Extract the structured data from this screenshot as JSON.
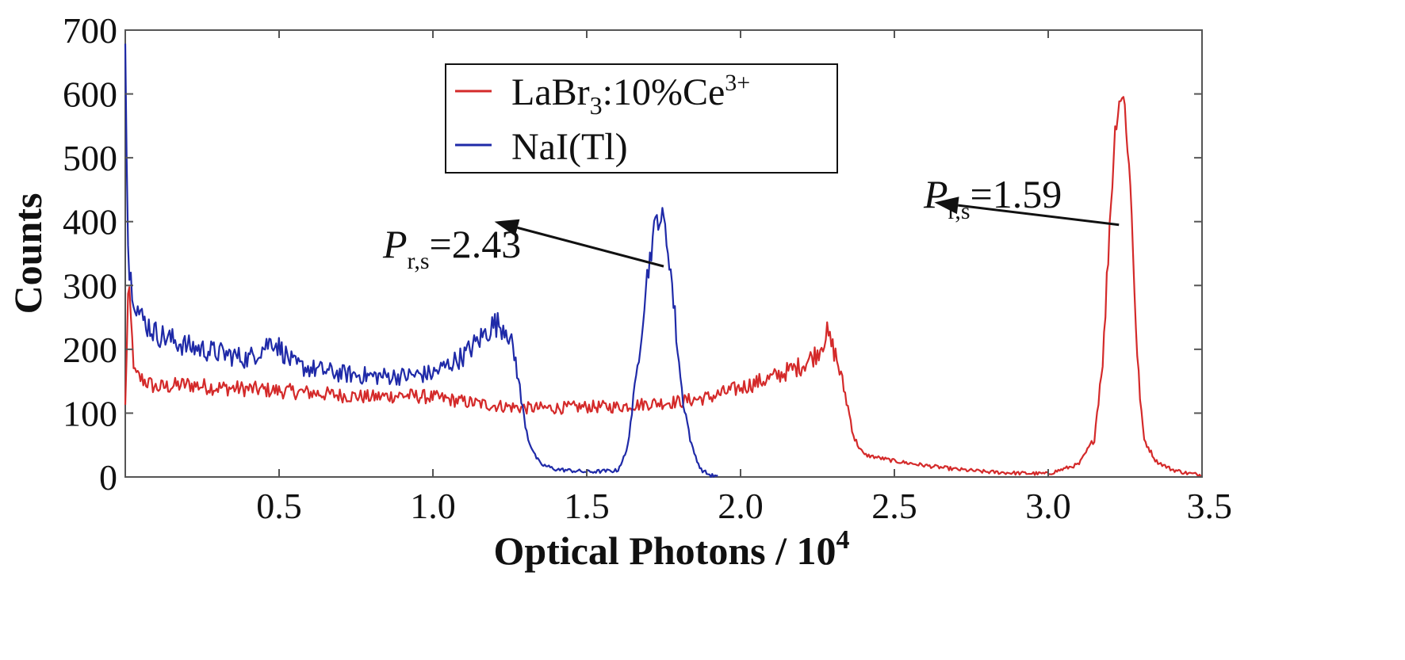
{
  "chart_data": {
    "type": "line",
    "title": "",
    "xlabel": "Optical Photons / 10",
    "xlabel_superscript": "4",
    "ylabel": "Counts",
    "xlim": [
      0,
      3.5
    ],
    "ylim": [
      0,
      700
    ],
    "xticks": [
      0.5,
      1.0,
      1.5,
      2.0,
      2.5,
      3.0,
      3.5
    ],
    "xtick_labels": [
      "0.5",
      "1.0",
      "1.5",
      "2.0",
      "2.5",
      "3.0",
      "3.5"
    ],
    "yticks": [
      0,
      100,
      200,
      300,
      400,
      500,
      600,
      700
    ],
    "ytick_labels": [
      "0",
      "100",
      "200",
      "300",
      "400",
      "500",
      "600",
      "700"
    ],
    "legend": {
      "position": "top-center",
      "entries": [
        {
          "name": "LaBr3:10%Ce3+",
          "text_main": "LaBr",
          "text_sub": "3",
          "text_mid": ":10%Ce",
          "text_sup": "3+",
          "color": "#d42a2a"
        },
        {
          "name": "NaI(Tl)",
          "text_main": "NaI(Tl)",
          "color": "#1f2aa8"
        }
      ]
    },
    "series": [
      {
        "name": "LaBr3:10%Ce3+",
        "color": "#d42a2a",
        "x": [
          0.0,
          0.01,
          0.03,
          0.1,
          0.2,
          0.3,
          0.4,
          0.5,
          0.6,
          0.7,
          0.8,
          0.9,
          1.0,
          1.1,
          1.2,
          1.3,
          1.4,
          1.5,
          1.6,
          1.7,
          1.8,
          1.9,
          2.0,
          2.1,
          2.2,
          2.25,
          2.28,
          2.31,
          2.34,
          2.37,
          2.4,
          2.5,
          2.6,
          2.7,
          2.8,
          2.9,
          3.0,
          3.1,
          3.15,
          3.18,
          3.2,
          3.22,
          3.235,
          3.25,
          3.27,
          3.29,
          3.31,
          3.35,
          3.4,
          3.45,
          3.5
        ],
        "y": [
          110,
          300,
          160,
          140,
          145,
          140,
          138,
          135,
          132,
          128,
          125,
          128,
          125,
          118,
          112,
          108,
          108,
          110,
          110,
          115,
          118,
          125,
          140,
          155,
          175,
          195,
          225,
          190,
          130,
          60,
          35,
          25,
          18,
          12,
          8,
          6,
          5,
          20,
          60,
          200,
          400,
          560,
          600,
          580,
          430,
          180,
          60,
          25,
          12,
          6,
          3
        ]
      },
      {
        "name": "NaI(Tl)",
        "color": "#1f2aa8",
        "x": [
          0.0,
          0.005,
          0.01,
          0.03,
          0.05,
          0.1,
          0.2,
          0.3,
          0.4,
          0.48,
          0.55,
          0.6,
          0.7,
          0.8,
          0.9,
          1.0,
          1.1,
          1.15,
          1.2,
          1.24,
          1.27,
          1.29,
          1.31,
          1.33,
          1.35,
          1.4,
          1.5,
          1.6,
          1.63,
          1.66,
          1.69,
          1.71,
          1.73,
          1.75,
          1.77,
          1.79,
          1.81,
          1.84,
          1.87,
          1.9,
          1.93
        ],
        "y": [
          700,
          500,
          330,
          280,
          250,
          225,
          205,
          195,
          185,
          215,
          175,
          170,
          162,
          158,
          158,
          162,
          190,
          215,
          240,
          235,
          180,
          110,
          60,
          35,
          20,
          12,
          8,
          10,
          40,
          150,
          290,
          360,
          410,
          400,
          340,
          230,
          130,
          50,
          12,
          3,
          0
        ]
      }
    ],
    "annotations": [
      {
        "italic": "P",
        "sub": "r,s",
        "text": "=2.43",
        "arrow_from_data": [
          1.75,
          330
        ],
        "arrow_to_data": [
          1.2,
          400
        ]
      },
      {
        "italic": "P",
        "sub": "r,s",
        "text": "=1.59",
        "arrow_from_data": [
          3.23,
          395
        ],
        "arrow_to_data": [
          2.63,
          430
        ]
      }
    ]
  }
}
